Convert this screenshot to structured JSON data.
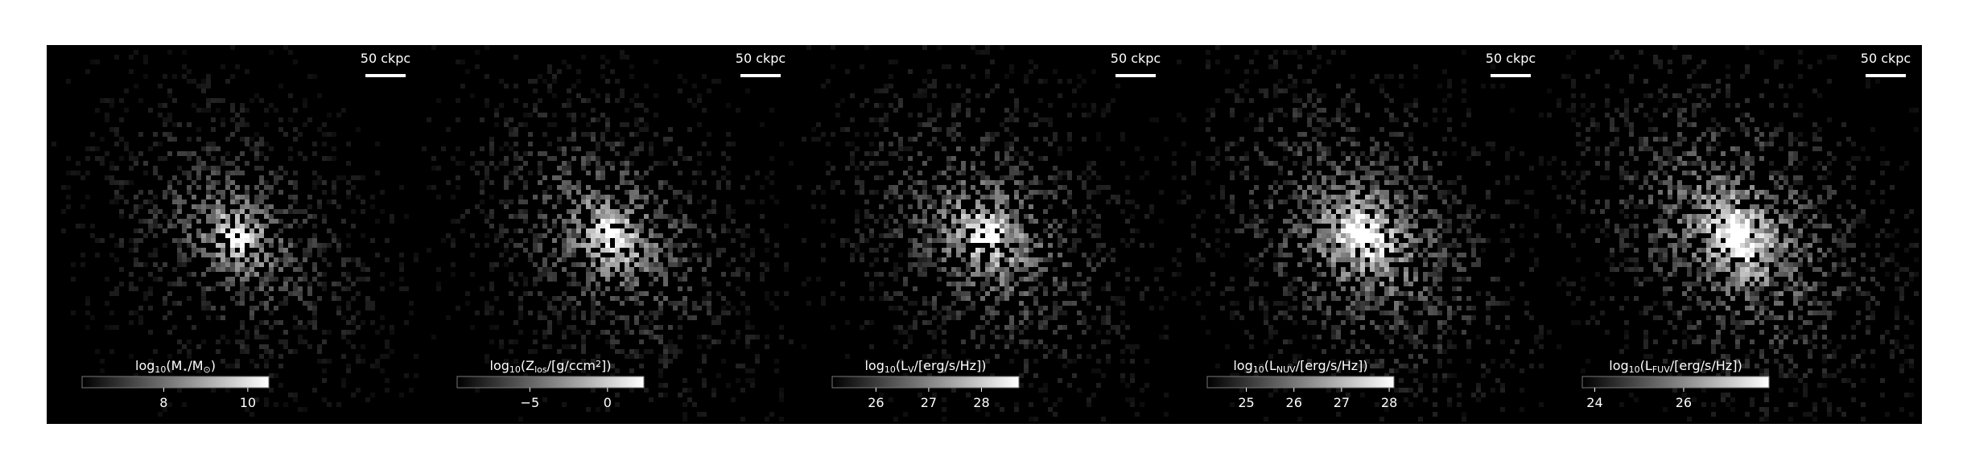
{
  "chart_data": [
    {
      "type": "image",
      "scalebar_label": "50 ckpc",
      "colorbar_label": [
        {
          "text": "log"
        },
        {
          "text": "10",
          "sub": true
        },
        {
          "text": "(M"
        },
        {
          "text": "⋆",
          "sub": true
        },
        {
          "text": "/M"
        },
        {
          "text": "⊙",
          "sub": true
        },
        {
          "text": ")"
        }
      ],
      "clim": [
        6.06,
        10.5
      ],
      "cticks": [
        8,
        10
      ],
      "colormap": "gray"
    },
    {
      "type": "image",
      "scalebar_label": "50 ckpc",
      "colorbar_label": [
        {
          "text": "log"
        },
        {
          "text": "10",
          "sub": true
        },
        {
          "text": "(Z"
        },
        {
          "text": "los",
          "sub": true
        },
        {
          "text": "/[g/ccm"
        },
        {
          "text": "2",
          "sup": true
        },
        {
          "text": "])"
        }
      ],
      "clim": [
        -9.68,
        2.34
      ],
      "cticks": [
        {
          "value": -5,
          "label": "−5"
        },
        0
      ],
      "colormap": "gray"
    },
    {
      "type": "image",
      "scalebar_label": "50 ckpc",
      "colorbar_label": [
        {
          "text": "log"
        },
        {
          "text": "10",
          "sub": true
        },
        {
          "text": "(L"
        },
        {
          "text": "V",
          "sub": true
        },
        {
          "text": "/[erg/s/Hz])"
        }
      ],
      "clim": [
        25.17,
        28.71
      ],
      "cticks": [
        26,
        27,
        28
      ],
      "colormap": "gray"
    },
    {
      "type": "image",
      "scalebar_label": "50 ckpc",
      "colorbar_label": [
        {
          "text": "log"
        },
        {
          "text": "10",
          "sub": true
        },
        {
          "text": "(L"
        },
        {
          "text": "NUV",
          "sub": true
        },
        {
          "text": "/[erg/s/Hz])"
        }
      ],
      "clim": [
        24.18,
        28.1
      ],
      "cticks": [
        25,
        26,
        27,
        28
      ],
      "colormap": "gray"
    },
    {
      "type": "image",
      "scalebar_label": "50 ckpc",
      "colorbar_label": [
        {
          "text": "log"
        },
        {
          "text": "10",
          "sub": true
        },
        {
          "text": "(L"
        },
        {
          "text": "FUV",
          "sub": true
        },
        {
          "text": "/[erg/s/Hz])"
        }
      ],
      "clim": [
        23.72,
        27.92
      ],
      "cticks": [
        24,
        26
      ],
      "colormap": "gray"
    }
  ]
}
